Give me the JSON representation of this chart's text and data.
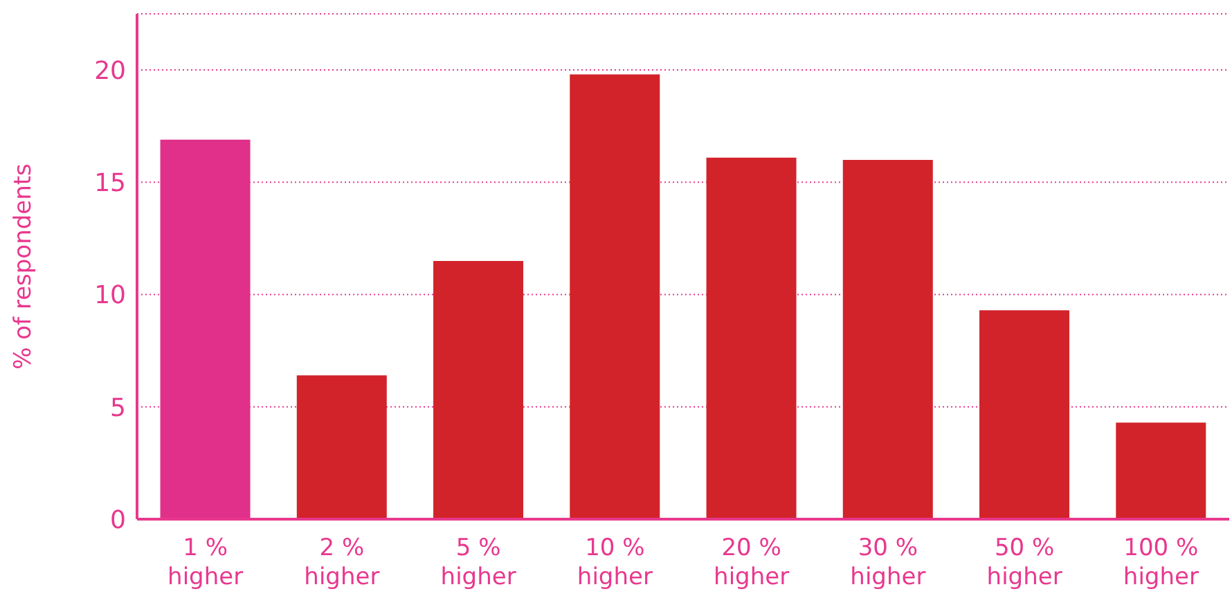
{
  "chart_data": {
    "type": "bar",
    "ylabel": "% of respondents",
    "categories": [
      "1 % higher",
      "2 % higher",
      "5 % higher",
      "10 % higher",
      "20 % higher",
      "30 % higher",
      "50 % higher",
      "100 % higher"
    ],
    "values": [
      16.9,
      6.4,
      11.5,
      19.8,
      16.1,
      16.0,
      9.3,
      4.3
    ],
    "colors": [
      "#e0308a",
      "#d2232a",
      "#d2232a",
      "#d2232a",
      "#d2232a",
      "#d2232a",
      "#d2232a",
      "#d2232a"
    ],
    "ylim": [
      0,
      22.5
    ],
    "yticks": [
      0,
      5,
      10,
      15,
      20
    ],
    "grid": "y"
  }
}
